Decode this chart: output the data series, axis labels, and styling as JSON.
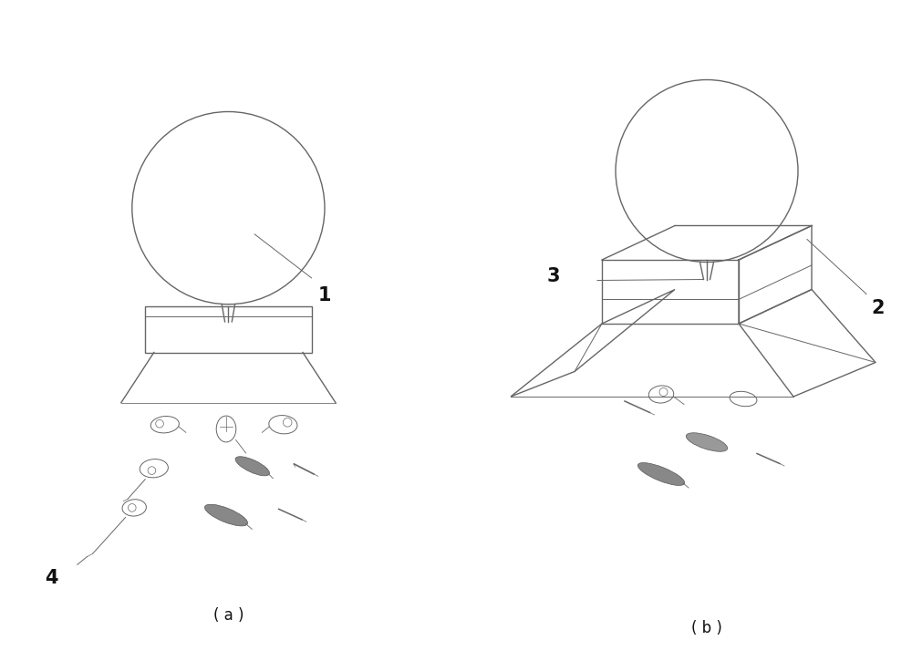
{
  "bg_color": "#ffffff",
  "line_color": "#666666",
  "label_color": "#111111",
  "fig_width": 10.0,
  "fig_height": 7.25,
  "dpi": 100,
  "label_1": "1",
  "label_2": "2",
  "label_3": "3",
  "label_4": "4",
  "label_a": "( a )",
  "label_b": "( b )"
}
